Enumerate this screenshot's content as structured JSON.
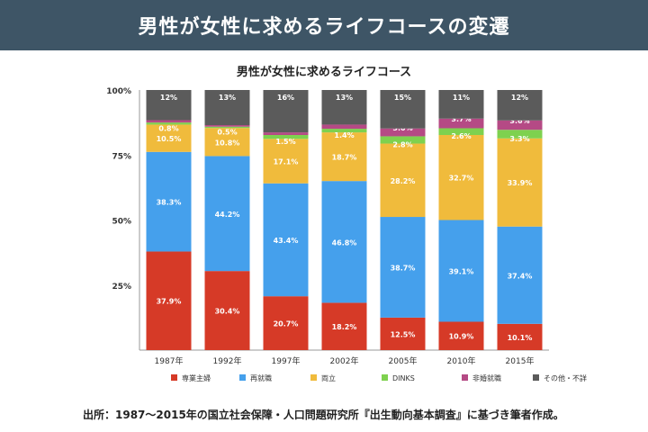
{
  "banner": {
    "title": "男性が女性に求めるライフコースの変遷"
  },
  "source": "出所：1987〜2015年の国立社会保障・人口問題研究所『出生動向基本調査』に基づき筆者作成。",
  "colors": {
    "専業主婦": "#d63a27",
    "再就職": "#45a0ec",
    "両立": "#f0bb3c",
    "DINKS": "#7ed14f",
    "非婚就職": "#b54a85",
    "その他・不詳": "#5b5b5b"
  },
  "chart_data": {
    "type": "bar",
    "stacked": true,
    "title": "男性が女性に求めるライフコース",
    "categories": [
      "1987年",
      "1992年",
      "1997年",
      "2002年",
      "2005年",
      "2010年",
      "2015年"
    ],
    "y_ticks": [
      "0%",
      "25%",
      "50%",
      "75%",
      "100%"
    ],
    "ylim": [
      0,
      100
    ],
    "legend_position": "bottom",
    "series": [
      {
        "name": "専業主婦",
        "values": [
          37.9,
          30.4,
          20.7,
          18.2,
          12.5,
          10.9,
          10.1
        ],
        "labels": [
          "37.9%",
          "30.4%",
          "20.7%",
          "18.2%",
          "12.5%",
          "10.9%",
          "10.1%"
        ]
      },
      {
        "name": "再就職",
        "values": [
          38.3,
          44.2,
          43.4,
          46.8,
          38.7,
          39.1,
          37.4
        ],
        "labels": [
          "38.3%",
          "44.2%",
          "43.4%",
          "46.8%",
          "38.7%",
          "39.1%",
          "37.4%"
        ]
      },
      {
        "name": "両立",
        "values": [
          10.5,
          10.8,
          17.1,
          18.7,
          28.2,
          32.7,
          33.9
        ],
        "labels": [
          "10.5%",
          "10.8%",
          "17.1%",
          "18.7%",
          "28.2%",
          "32.7%",
          "33.9%"
        ]
      },
      {
        "name": "DINKS",
        "values": [
          0.8,
          0.5,
          1.5,
          1.4,
          2.8,
          2.6,
          3.3
        ],
        "labels": [
          "0.8%",
          "0.5%",
          "1.5%",
          "1.4%",
          "2.8%",
          "2.6%",
          "3.3%"
        ]
      },
      {
        "name": "非婚就職",
        "values": [
          0.9,
          0.6,
          1.0,
          1.6,
          3.0,
          3.7,
          3.6
        ],
        "labels": [
          "0.9%",
          "0.6%",
          "1.0%",
          "1.6%",
          "3.0%",
          "3.7%",
          "3.6%"
        ]
      },
      {
        "name": "その他・不詳",
        "values": [
          12,
          13,
          16,
          13,
          15,
          11,
          12
        ],
        "labels": [
          "12%",
          "13%",
          "16%",
          "13%",
          "15%",
          "11%",
          "12%"
        ]
      }
    ]
  }
}
